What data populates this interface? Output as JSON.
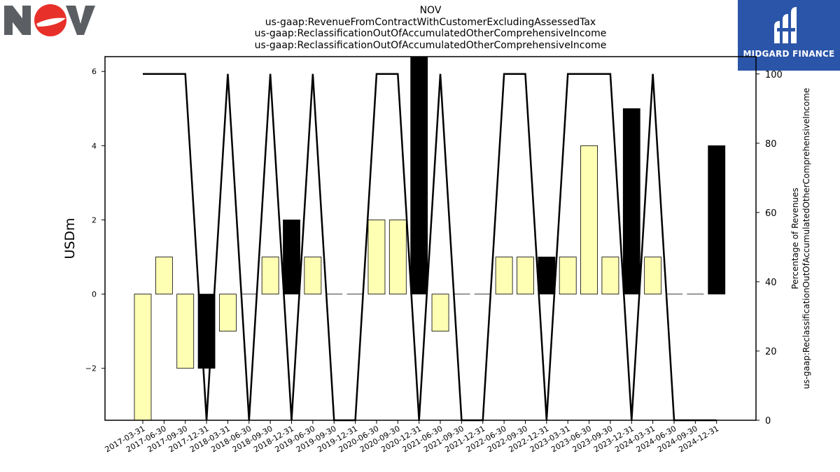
{
  "header": {
    "ticker": "NOV",
    "line2": "us-gaap:RevenueFromContractWithCustomerExcludingAssessedTax",
    "line3": "us-gaap:ReclassificationOutOfAccumulatedOtherComprehensiveIncome",
    "line4": "us-gaap:ReclassificationOutOfAccumulatedOtherComprehensiveIncome"
  },
  "logos": {
    "left_name": "nov-logo",
    "right_name": "midgard-finance-logo",
    "right_text": "MIDGARD FINANCE"
  },
  "colors": {
    "bar_light": "#ffffb3",
    "bar_dark": "#000000",
    "line": "#000000",
    "logo_gray": "#5b5f63",
    "logo_red": "#e8302a",
    "brand_blue": "#2b55a8"
  },
  "chart_data": {
    "type": "bar",
    "categories": [
      "2017-03-31",
      "2017-06-30",
      "2017-09-30",
      "2017-12-31",
      "2018-03-31",
      "2018-06-30",
      "2018-09-30",
      "2018-12-31",
      "2019-06-30",
      "2019-09-30",
      "2019-12-31",
      "2020-06-30",
      "2020-09-30",
      "2020-12-31",
      "2021-06-30",
      "2021-09-30",
      "2021-12-31",
      "2022-06-30",
      "2022-09-30",
      "2022-12-31",
      "2023-03-31",
      "2023-06-30",
      "2023-09-30",
      "2023-12-31",
      "2024-03-31",
      "2024-06-30",
      "2024-09-30",
      "2024-12-31"
    ],
    "bar_values": [
      -3.4,
      1,
      -2,
      -2,
      -1,
      0,
      1,
      2,
      1,
      0,
      0,
      2,
      2,
      6.4,
      -1,
      0,
      0,
      1,
      1,
      1,
      1,
      4,
      1,
      5,
      1,
      0,
      0,
      4
    ],
    "bar_fill": [
      "light",
      "light",
      "light",
      "dark",
      "light",
      "light",
      "light",
      "dark",
      "light",
      "light",
      "light",
      "light",
      "light",
      "dark",
      "light",
      "light",
      "light",
      "light",
      "light",
      "dark",
      "light",
      "light",
      "light",
      "dark",
      "light",
      "light",
      "light",
      "dark"
    ],
    "line_values": [
      100,
      100,
      100,
      0,
      100,
      0,
      100,
      0,
      100,
      0,
      0,
      100,
      100,
      0,
      100,
      0,
      0,
      100,
      100,
      0,
      100,
      100,
      100,
      0,
      100,
      0,
      0,
      0
    ],
    "ylabel": "USDm",
    "y2label_line1": "Percentage of Revenues",
    "y2label_line2": "us-gaap:ReclassificationOutOfAccumulatedOtherComprehensiveIncome",
    "ylim": [
      -3.4,
      6.4
    ],
    "y2lim": [
      0,
      105
    ],
    "yticks": [
      -2,
      0,
      2,
      4,
      6
    ],
    "y2ticks": [
      0,
      20,
      40,
      60,
      80,
      100
    ],
    "grid": false,
    "legend": "none"
  }
}
